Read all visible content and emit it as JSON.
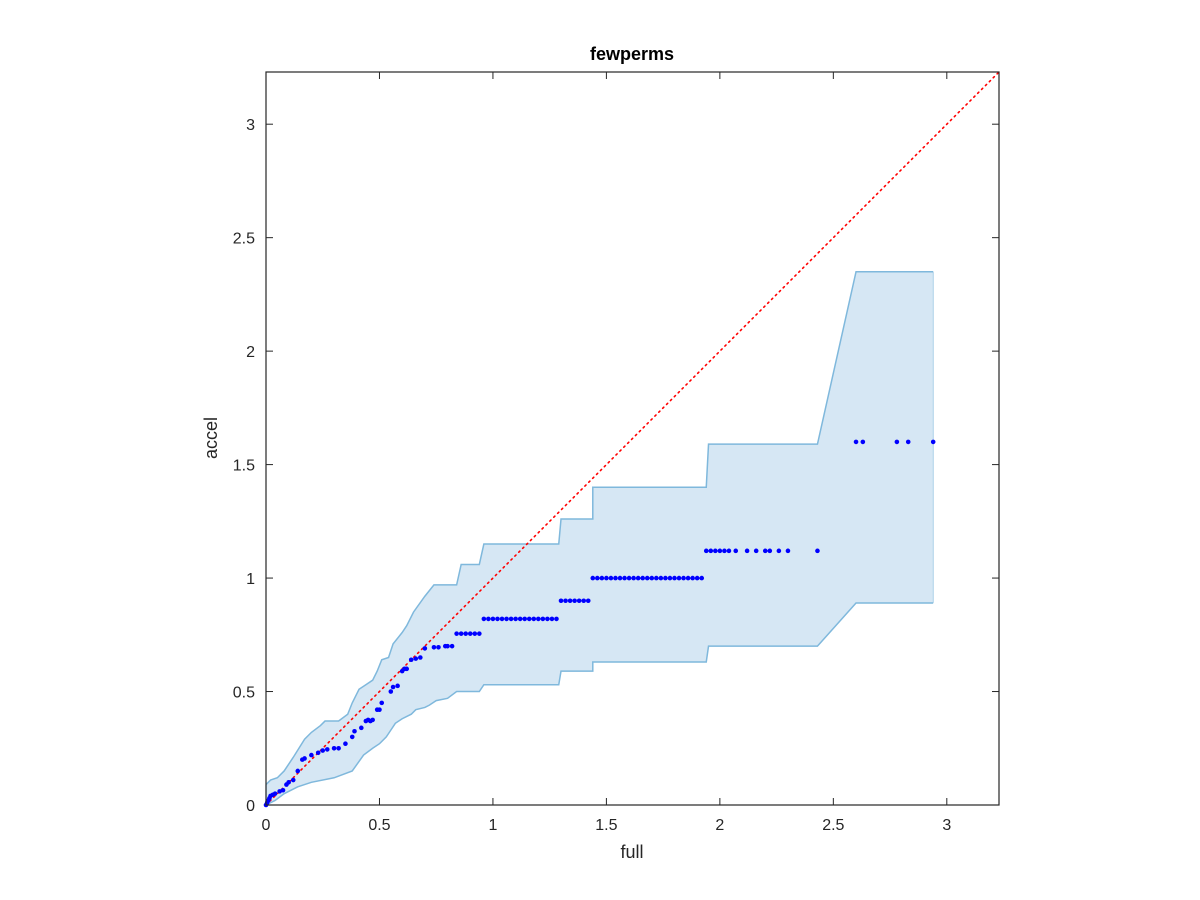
{
  "chart_data": {
    "type": "scatter",
    "title": "fewperms",
    "xlabel": "full",
    "ylabel": "accel",
    "xlim": [
      0,
      3.23
    ],
    "ylim": [
      0,
      3.23
    ],
    "xticks": [
      0,
      0.5,
      1,
      1.5,
      2,
      2.5,
      3
    ],
    "yticks": [
      0,
      0.5,
      1,
      1.5,
      2,
      2.5,
      3
    ],
    "xtick_labels": [
      "0",
      "0.5",
      "1",
      "1.5",
      "2",
      "2.5",
      "3"
    ],
    "ytick_labels": [
      "0",
      "0.5",
      "1",
      "1.5",
      "2",
      "2.5",
      "3"
    ],
    "grid": false,
    "colors": {
      "points": "#0000ff",
      "reference_line": "#ff0000",
      "band_fill": "#d6e7f4",
      "band_edge": "#7fb8dc",
      "axes": "#262626"
    },
    "reference_line": {
      "x": [
        0,
        3.23
      ],
      "y": [
        0,
        3.23
      ],
      "style": "dotted"
    },
    "band": {
      "upper": [
        [
          0,
          0.09
        ],
        [
          0.02,
          0.11
        ],
        [
          0.05,
          0.12
        ],
        [
          0.08,
          0.15
        ],
        [
          0.12,
          0.21
        ],
        [
          0.17,
          0.29
        ],
        [
          0.2,
          0.32
        ],
        [
          0.24,
          0.35
        ],
        [
          0.26,
          0.37
        ],
        [
          0.32,
          0.37
        ],
        [
          0.36,
          0.4
        ],
        [
          0.38,
          0.45
        ],
        [
          0.4,
          0.49
        ],
        [
          0.41,
          0.51
        ],
        [
          0.44,
          0.53
        ],
        [
          0.47,
          0.55
        ],
        [
          0.49,
          0.59
        ],
        [
          0.51,
          0.64
        ],
        [
          0.54,
          0.65
        ],
        [
          0.56,
          0.71
        ],
        [
          0.6,
          0.76
        ],
        [
          0.62,
          0.79
        ],
        [
          0.65,
          0.85
        ],
        [
          0.7,
          0.92
        ],
        [
          0.74,
          0.97
        ],
        [
          0.84,
          0.97
        ],
        [
          0.86,
          1.06
        ],
        [
          0.94,
          1.06
        ],
        [
          0.96,
          1.15
        ],
        [
          1.29,
          1.15
        ],
        [
          1.3,
          1.26
        ],
        [
          1.44,
          1.26
        ],
        [
          1.44,
          1.4
        ],
        [
          1.94,
          1.4
        ],
        [
          1.95,
          1.59
        ],
        [
          2.43,
          1.59
        ],
        [
          2.6,
          2.35
        ],
        [
          2.94,
          2.35
        ]
      ],
      "lower": [
        [
          2.94,
          0.89
        ],
        [
          2.6,
          0.89
        ],
        [
          2.43,
          0.7
        ],
        [
          1.95,
          0.7
        ],
        [
          1.94,
          0.63
        ],
        [
          1.44,
          0.63
        ],
        [
          1.44,
          0.59
        ],
        [
          1.3,
          0.59
        ],
        [
          1.29,
          0.53
        ],
        [
          0.96,
          0.53
        ],
        [
          0.94,
          0.5
        ],
        [
          0.84,
          0.5
        ],
        [
          0.8,
          0.47
        ],
        [
          0.75,
          0.46
        ],
        [
          0.72,
          0.44
        ],
        [
          0.7,
          0.43
        ],
        [
          0.66,
          0.42
        ],
        [
          0.64,
          0.4
        ],
        [
          0.6,
          0.38
        ],
        [
          0.57,
          0.36
        ],
        [
          0.55,
          0.33
        ],
        [
          0.53,
          0.3
        ],
        [
          0.5,
          0.27
        ],
        [
          0.47,
          0.25
        ],
        [
          0.43,
          0.22
        ],
        [
          0.38,
          0.15
        ],
        [
          0.3,
          0.12
        ],
        [
          0.2,
          0.1
        ],
        [
          0.14,
          0.08
        ],
        [
          0.08,
          0.05
        ],
        [
          0.04,
          0.02
        ],
        [
          0,
          0
        ]
      ]
    },
    "points": [
      [
        0,
        0
      ],
      [
        0.005,
        0.01
      ],
      [
        0.01,
        0.02
      ],
      [
        0.015,
        0.03
      ],
      [
        0.02,
        0.04
      ],
      [
        0.03,
        0.045
      ],
      [
        0.04,
        0.05
      ],
      [
        0.06,
        0.06
      ],
      [
        0.075,
        0.065
      ],
      [
        0.09,
        0.09
      ],
      [
        0.1,
        0.1
      ],
      [
        0.12,
        0.11
      ],
      [
        0.14,
        0.15
      ],
      [
        0.16,
        0.2
      ],
      [
        0.17,
        0.205
      ],
      [
        0.2,
        0.22
      ],
      [
        0.23,
        0.23
      ],
      [
        0.25,
        0.24
      ],
      [
        0.27,
        0.245
      ],
      [
        0.3,
        0.25
      ],
      [
        0.32,
        0.25
      ],
      [
        0.35,
        0.27
      ],
      [
        0.38,
        0.3
      ],
      [
        0.39,
        0.325
      ],
      [
        0.42,
        0.34
      ],
      [
        0.44,
        0.37
      ],
      [
        0.45,
        0.375
      ],
      [
        0.46,
        0.37
      ],
      [
        0.47,
        0.375
      ],
      [
        0.49,
        0.42
      ],
      [
        0.5,
        0.42
      ],
      [
        0.51,
        0.45
      ],
      [
        0.55,
        0.5
      ],
      [
        0.56,
        0.52
      ],
      [
        0.58,
        0.525
      ],
      [
        0.6,
        0.59
      ],
      [
        0.61,
        0.6
      ],
      [
        0.62,
        0.6
      ],
      [
        0.64,
        0.64
      ],
      [
        0.66,
        0.645
      ],
      [
        0.68,
        0.65
      ],
      [
        0.7,
        0.69
      ],
      [
        0.74,
        0.695
      ],
      [
        0.76,
        0.695
      ],
      [
        0.79,
        0.7
      ],
      [
        0.8,
        0.7
      ],
      [
        0.82,
        0.7
      ],
      [
        0.84,
        0.755
      ],
      [
        0.86,
        0.755
      ],
      [
        0.88,
        0.755
      ],
      [
        0.9,
        0.755
      ],
      [
        0.92,
        0.755
      ],
      [
        0.94,
        0.755
      ],
      [
        0.96,
        0.82
      ],
      [
        0.98,
        0.82
      ],
      [
        1.0,
        0.82
      ],
      [
        1.02,
        0.82
      ],
      [
        1.04,
        0.82
      ],
      [
        1.06,
        0.82
      ],
      [
        1.08,
        0.82
      ],
      [
        1.1,
        0.82
      ],
      [
        1.12,
        0.82
      ],
      [
        1.14,
        0.82
      ],
      [
        1.16,
        0.82
      ],
      [
        1.18,
        0.82
      ],
      [
        1.2,
        0.82
      ],
      [
        1.22,
        0.82
      ],
      [
        1.24,
        0.82
      ],
      [
        1.26,
        0.82
      ],
      [
        1.28,
        0.82
      ],
      [
        1.3,
        0.9
      ],
      [
        1.32,
        0.9
      ],
      [
        1.34,
        0.9
      ],
      [
        1.36,
        0.9
      ],
      [
        1.38,
        0.9
      ],
      [
        1.4,
        0.9
      ],
      [
        1.42,
        0.9
      ],
      [
        1.44,
        1.0
      ],
      [
        1.46,
        1.0
      ],
      [
        1.48,
        1.0
      ],
      [
        1.5,
        1.0
      ],
      [
        1.52,
        1.0
      ],
      [
        1.54,
        1.0
      ],
      [
        1.56,
        1.0
      ],
      [
        1.58,
        1.0
      ],
      [
        1.6,
        1.0
      ],
      [
        1.62,
        1.0
      ],
      [
        1.64,
        1.0
      ],
      [
        1.66,
        1.0
      ],
      [
        1.68,
        1.0
      ],
      [
        1.7,
        1.0
      ],
      [
        1.72,
        1.0
      ],
      [
        1.74,
        1.0
      ],
      [
        1.76,
        1.0
      ],
      [
        1.78,
        1.0
      ],
      [
        1.8,
        1.0
      ],
      [
        1.82,
        1.0
      ],
      [
        1.84,
        1.0
      ],
      [
        1.86,
        1.0
      ],
      [
        1.88,
        1.0
      ],
      [
        1.9,
        1.0
      ],
      [
        1.92,
        1.0
      ],
      [
        1.94,
        1.12
      ],
      [
        1.96,
        1.12
      ],
      [
        1.98,
        1.12
      ],
      [
        2.0,
        1.12
      ],
      [
        2.02,
        1.12
      ],
      [
        2.04,
        1.12
      ],
      [
        2.07,
        1.12
      ],
      [
        2.12,
        1.12
      ],
      [
        2.16,
        1.12
      ],
      [
        2.2,
        1.12
      ],
      [
        2.22,
        1.12
      ],
      [
        2.26,
        1.12
      ],
      [
        2.3,
        1.12
      ],
      [
        2.43,
        1.12
      ],
      [
        2.6,
        1.6
      ],
      [
        2.63,
        1.6
      ],
      [
        2.78,
        1.6
      ],
      [
        2.83,
        1.6
      ],
      [
        2.94,
        1.6
      ]
    ]
  }
}
